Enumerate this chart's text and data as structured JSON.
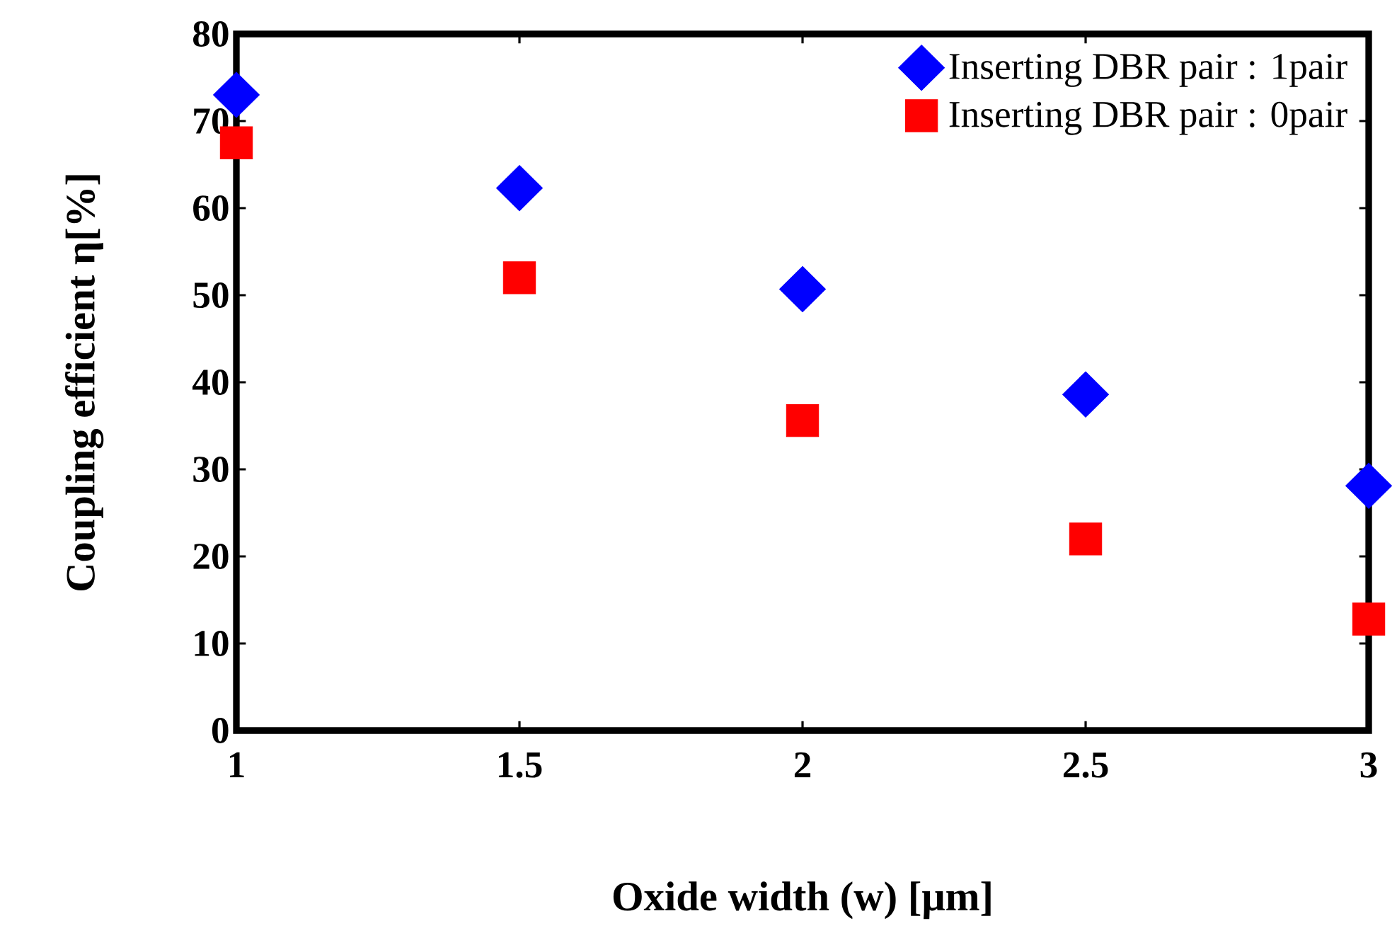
{
  "chart_data": {
    "type": "scatter",
    "xlabel": "Oxide width (w)  [μm]",
    "ylabel": "Coupling efficient η[%]",
    "x": [
      1,
      1.5,
      2,
      2.5,
      3
    ],
    "series": [
      {
        "name": "Inserting DBR pair : 1pair",
        "color": "#0000ff",
        "marker": "diamond",
        "values": [
          73,
          62.3,
          50.7,
          38.6,
          28.1
        ]
      },
      {
        "name": "Inserting DBR pair : 0pair",
        "color": "#ff0000",
        "marker": "square",
        "values": [
          67.5,
          52,
          35.6,
          22,
          12.8
        ]
      }
    ],
    "xlim": [
      1,
      3
    ],
    "ylim": [
      0,
      80
    ],
    "xticks": [
      1,
      1.5,
      2,
      2.5,
      3
    ],
    "yticks": [
      0,
      10,
      20,
      30,
      40,
      50,
      60,
      70,
      80
    ],
    "grid": false,
    "legend": "top right"
  }
}
